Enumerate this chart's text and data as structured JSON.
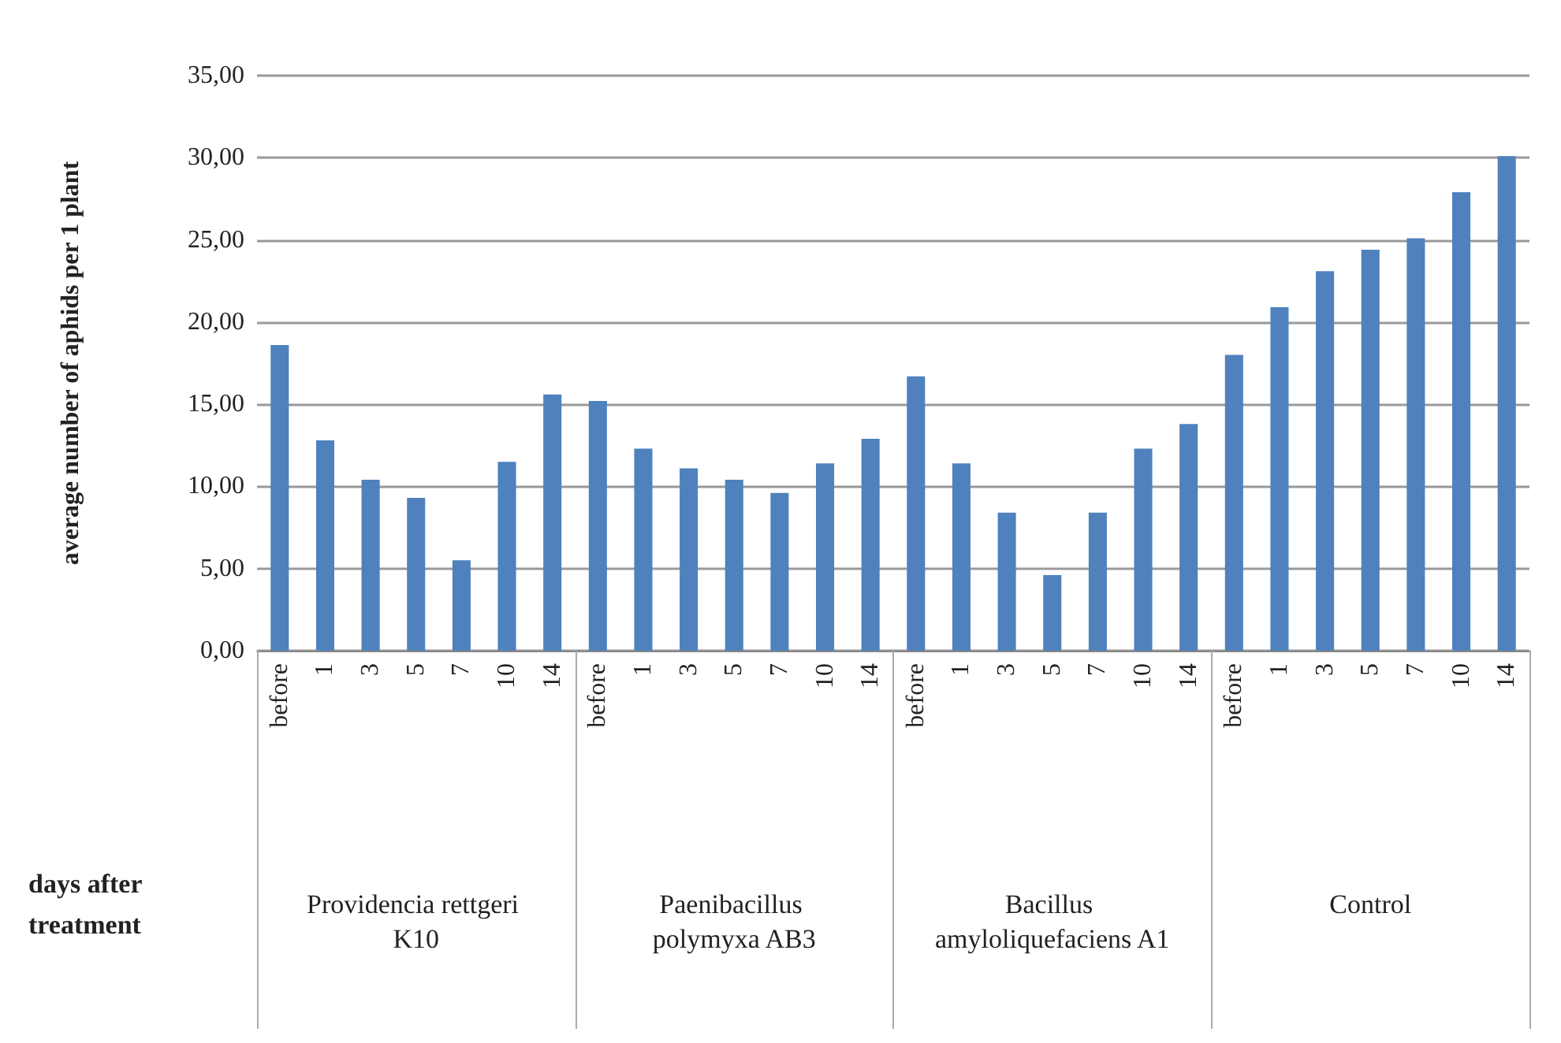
{
  "chart_data": {
    "type": "bar",
    "ylabel": "average number of aphids per 1 plant",
    "categories": [
      "before",
      "1",
      "3",
      "5",
      "7",
      "10",
      "14",
      "before",
      "1",
      "3",
      "5",
      "7",
      "10",
      "14",
      "before",
      "1",
      "3",
      "5",
      "7",
      "10",
      "14",
      "before",
      "1",
      "3",
      "5",
      "7",
      "10",
      "14"
    ],
    "values": [
      18.6,
      12.8,
      10.4,
      9.3,
      5.5,
      11.5,
      15.6,
      15.2,
      12.3,
      11.1,
      10.4,
      9.6,
      11.4,
      12.9,
      16.7,
      11.4,
      8.4,
      4.6,
      8.4,
      12.3,
      13.8,
      18.0,
      20.9,
      23.1,
      24.4,
      25.1,
      27.9,
      30.1
    ],
    "color": "#4f81bd",
    "annotations": [
      "days after treatment",
      "Providencia rettgeri K10",
      "Paenibacillus polymyxa AB3",
      "Bacillus amyloliquefaciens A1",
      "Control"
    ],
    "ylim": [
      0,
      35
    ],
    "yticks": [
      {
        "value": 0,
        "label": "0,00"
      },
      {
        "value": 5,
        "label": "5,00"
      },
      {
        "value": 10,
        "label": "10,00"
      },
      {
        "value": 15,
        "label": "15,00"
      },
      {
        "value": 20,
        "label": "20,00"
      },
      {
        "value": 25,
        "label": "25,00"
      },
      {
        "value": 30,
        "label": "30,00"
      },
      {
        "value": 35,
        "label": "35,00"
      }
    ],
    "grid": "y"
  }
}
